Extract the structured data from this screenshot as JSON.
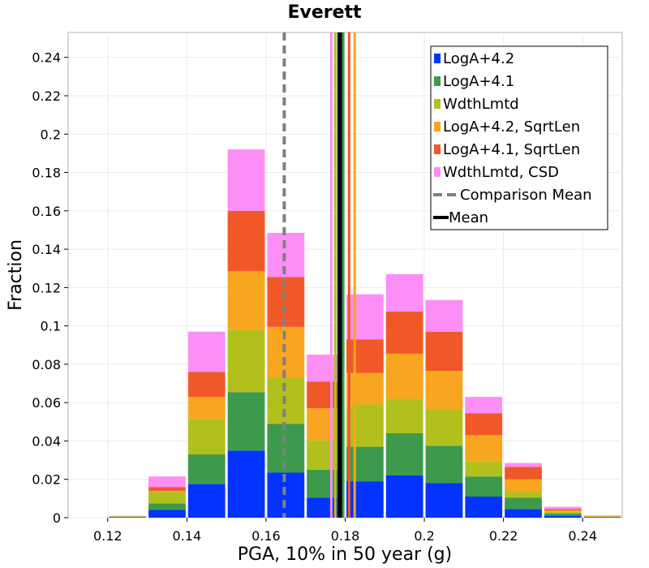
{
  "chart_data": {
    "type": "bar",
    "stacked": true,
    "title": "Everett",
    "xlabel": "PGA, 10% in 50 year (g)",
    "ylabel": "Fraction",
    "xlim": [
      0.11,
      0.25
    ],
    "ylim": [
      0,
      0.253
    ],
    "xticks": [
      "0.12",
      "0.14",
      "0.16",
      "0.18",
      "0.2",
      "0.22",
      "0.24"
    ],
    "xtick_values": [
      0.12,
      0.14,
      0.16,
      0.18,
      0.2,
      0.22,
      0.24
    ],
    "yticks": [
      "0",
      "0.02",
      "0.04",
      "0.06",
      "0.08",
      "0.1",
      "0.12",
      "0.14",
      "0.16",
      "0.18",
      "0.2",
      "0.22",
      "0.24"
    ],
    "ytick_values": [
      0,
      0.02,
      0.04,
      0.06,
      0.08,
      0.1,
      0.12,
      0.14,
      0.16,
      0.18,
      0.2,
      0.22,
      0.24
    ],
    "bin_width": 0.01,
    "bin_centers": [
      0.125,
      0.135,
      0.145,
      0.155,
      0.165,
      0.175,
      0.185,
      0.195,
      0.205,
      0.215,
      0.225,
      0.235,
      0.245
    ],
    "series": [
      {
        "name": "LogA+4.2",
        "color": "#0433ff",
        "values": [
          0.0003,
          0.004,
          0.0175,
          0.035,
          0.0235,
          0.0105,
          0.019,
          0.022,
          0.018,
          0.011,
          0.0045,
          0.001,
          0.0002
        ]
      },
      {
        "name": "LogA+4.1",
        "color": "#3d9a4c",
        "values": [
          0.0002,
          0.0035,
          0.0155,
          0.0305,
          0.0255,
          0.0145,
          0.018,
          0.022,
          0.0195,
          0.0105,
          0.006,
          0.0012,
          0.0002
        ]
      },
      {
        "name": "WdthLmtd",
        "color": "#b2c01e",
        "values": [
          0.0002,
          0.006,
          0.0185,
          0.0325,
          0.024,
          0.0155,
          0.022,
          0.018,
          0.019,
          0.008,
          0.003,
          0.0008,
          0.0002
        ]
      },
      {
        "name": "LogA+4.2, SqrtLen",
        "color": "#f8a520",
        "values": [
          0.0001,
          0.0005,
          0.0115,
          0.0305,
          0.0265,
          0.0165,
          0.0165,
          0.0235,
          0.02,
          0.0135,
          0.0065,
          0.0008,
          0.0002
        ]
      },
      {
        "name": "LogA+4.1, SqrtLen",
        "color": "#f05828",
        "values": [
          0.0001,
          0.002,
          0.013,
          0.0315,
          0.026,
          0.014,
          0.0175,
          0.022,
          0.0205,
          0.0115,
          0.0065,
          0.0007,
          0.0002
        ]
      },
      {
        "name": "WdthLmtd, CSD",
        "color": "#fc8ef6",
        "values": [
          0.0001,
          0.0055,
          0.021,
          0.032,
          0.023,
          0.014,
          0.0235,
          0.0195,
          0.0165,
          0.0085,
          0.002,
          0.0012,
          0.0001
        ]
      }
    ],
    "vertical_lines": [
      {
        "name": "LogA+4.2 mean",
        "x": 0.1783,
        "color": "#0433ff",
        "style": "solid"
      },
      {
        "name": "LogA+4.1 mean",
        "x": 0.1795,
        "color": "#3d9a4c",
        "style": "solid"
      },
      {
        "name": "WdthLmtd mean",
        "x": 0.1775,
        "color": "#b2c01e",
        "style": "solid"
      },
      {
        "name": "LogA+4.2, SqrtLen mean",
        "x": 0.1824,
        "color": "#f8a520",
        "style": "solid"
      },
      {
        "name": "LogA+4.1, SqrtLen mean",
        "x": 0.181,
        "color": "#f05828",
        "style": "solid"
      },
      {
        "name": "WdthLmtd, CSD mean",
        "x": 0.1765,
        "color": "#fc8ef6",
        "style": "solid"
      },
      {
        "name": "Comparison Mean",
        "x": 0.1646,
        "color": "#808080",
        "style": "dashed"
      },
      {
        "name": "Mean",
        "x": 0.1787,
        "color": "#000000",
        "style": "solid-thick"
      }
    ],
    "legend": {
      "placement": "top-right",
      "entries": [
        {
          "label": "LogA+4.2",
          "color": "#0433ff",
          "kind": "box"
        },
        {
          "label": "LogA+4.1",
          "color": "#3d9a4c",
          "kind": "box"
        },
        {
          "label": "WdthLmtd",
          "color": "#b2c01e",
          "kind": "box"
        },
        {
          "label": "LogA+4.2, SqrtLen",
          "color": "#f8a520",
          "kind": "box"
        },
        {
          "label": "LogA+4.1, SqrtLen",
          "color": "#f05828",
          "kind": "box"
        },
        {
          "label": "WdthLmtd, CSD",
          "color": "#fc8ef6",
          "kind": "box"
        },
        {
          "label": "Comparison Mean",
          "color": "#808080",
          "kind": "dashed"
        },
        {
          "label": "Mean",
          "color": "#000000",
          "kind": "line"
        }
      ]
    },
    "grid": true
  }
}
